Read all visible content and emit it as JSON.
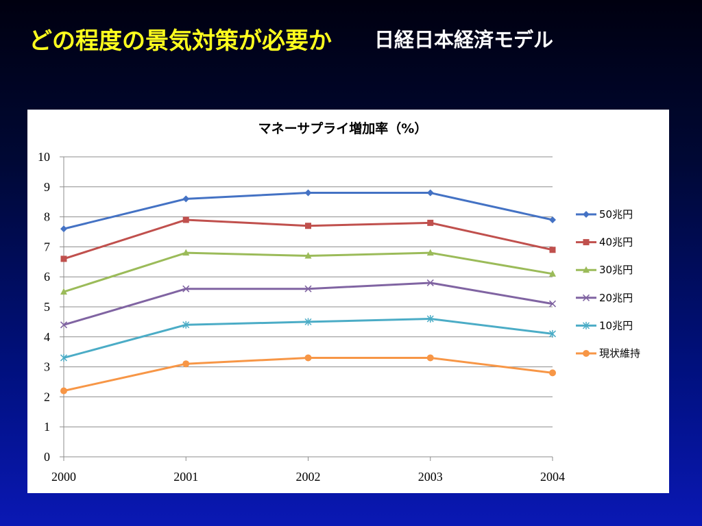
{
  "slide": {
    "title": "どの程度の景気対策が必要か",
    "subtitle": "日経日本経済モデル"
  },
  "chart_data": {
    "type": "line",
    "title": "マネーサプライ増加率（%）",
    "xlabel": "",
    "ylabel": "",
    "x": [
      "2000",
      "2001",
      "2002",
      "2003",
      "2004"
    ],
    "ylim": [
      0,
      10
    ],
    "yticks": [
      0,
      1,
      2,
      3,
      4,
      5,
      6,
      7,
      8,
      9,
      10
    ],
    "grid": true,
    "legend_position": "right",
    "series": [
      {
        "name": "50兆円",
        "color": "#4472c4",
        "marker": "diamond",
        "values": [
          7.6,
          8.6,
          8.8,
          8.8,
          7.9
        ]
      },
      {
        "name": "40兆円",
        "color": "#c0504d",
        "marker": "square",
        "values": [
          6.6,
          7.9,
          7.7,
          7.8,
          6.9
        ]
      },
      {
        "name": "30兆円",
        "color": "#9bbb59",
        "marker": "triangle",
        "values": [
          5.5,
          6.8,
          6.7,
          6.8,
          6.1
        ]
      },
      {
        "name": "20兆円",
        "color": "#8064a2",
        "marker": "x",
        "values": [
          4.4,
          5.6,
          5.6,
          5.8,
          5.1
        ]
      },
      {
        "name": "10兆円",
        "color": "#4bacc6",
        "marker": "star",
        "values": [
          3.3,
          4.4,
          4.5,
          4.6,
          4.1
        ]
      },
      {
        "name": "現状維持",
        "color": "#f79646",
        "marker": "circle",
        "values": [
          2.2,
          3.1,
          3.3,
          3.3,
          2.8
        ]
      }
    ]
  }
}
